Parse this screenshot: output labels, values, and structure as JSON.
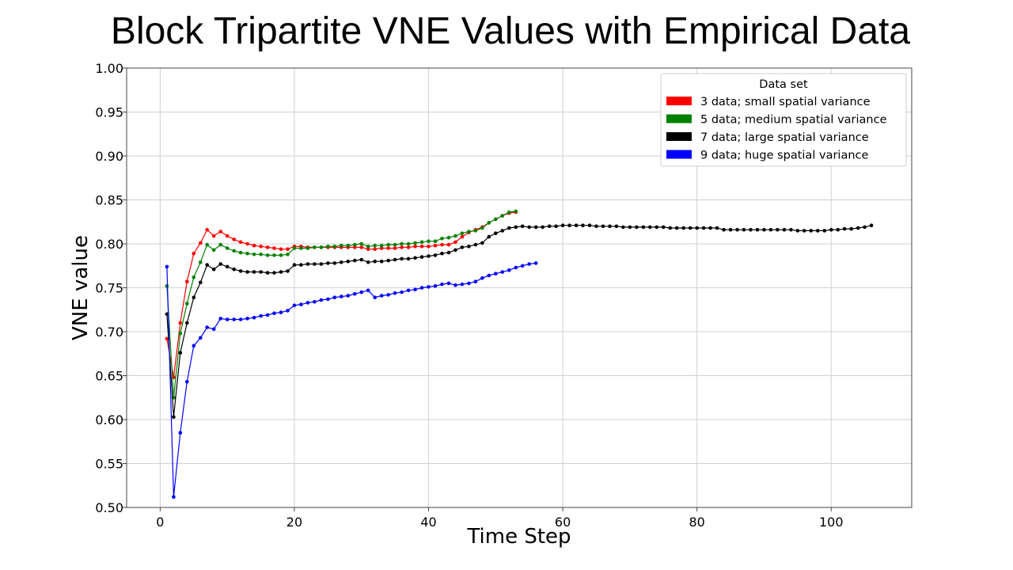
{
  "slide": {
    "title": "Block Tripartite VNE Values with Empirical Data"
  },
  "chart_data": {
    "type": "line",
    "xlabel": "Time Step",
    "ylabel": "VNE value",
    "xlim": [
      -5,
      112
    ],
    "ylim": [
      0.5,
      1.0
    ],
    "xticks": [
      0,
      20,
      40,
      60,
      80,
      100
    ],
    "yticks": [
      0.5,
      0.55,
      0.6,
      0.65,
      0.7,
      0.75,
      0.8,
      0.85,
      0.9,
      0.95,
      1.0
    ],
    "grid": true,
    "legend": {
      "title": "Data set",
      "position": "top-right"
    },
    "series": [
      {
        "name": "3 data; small spatial variance",
        "color": "#ff0000",
        "x_start": 1,
        "values": [
          0.692,
          0.648,
          0.71,
          0.757,
          0.789,
          0.801,
          0.816,
          0.809,
          0.814,
          0.809,
          0.805,
          0.802,
          0.8,
          0.798,
          0.797,
          0.796,
          0.795,
          0.794,
          0.794,
          0.797,
          0.797,
          0.796,
          0.796,
          0.796,
          0.796,
          0.796,
          0.796,
          0.796,
          0.796,
          0.796,
          0.794,
          0.794,
          0.795,
          0.795,
          0.795,
          0.796,
          0.796,
          0.797,
          0.797,
          0.797,
          0.798,
          0.799,
          0.799,
          0.802,
          0.808,
          0.813,
          0.816,
          0.819,
          0.824,
          0.828,
          0.832,
          0.835,
          0.836
        ]
      },
      {
        "name": "5 data; medium spatial variance",
        "color": "#008000",
        "x_start": 1,
        "values": [
          0.752,
          0.625,
          0.698,
          0.732,
          0.762,
          0.779,
          0.799,
          0.793,
          0.799,
          0.795,
          0.792,
          0.79,
          0.789,
          0.788,
          0.788,
          0.787,
          0.787,
          0.787,
          0.788,
          0.795,
          0.795,
          0.795,
          0.796,
          0.796,
          0.797,
          0.797,
          0.798,
          0.798,
          0.799,
          0.8,
          0.797,
          0.798,
          0.798,
          0.799,
          0.799,
          0.8,
          0.8,
          0.801,
          0.802,
          0.803,
          0.803,
          0.806,
          0.807,
          0.809,
          0.812,
          0.814,
          0.815,
          0.818,
          0.824,
          0.828,
          0.832,
          0.836,
          0.837
        ]
      },
      {
        "name": "7 data; large spatial variance",
        "color": "#000000",
        "x_start": 1,
        "values": [
          0.72,
          0.603,
          0.676,
          0.71,
          0.739,
          0.756,
          0.776,
          0.771,
          0.777,
          0.774,
          0.771,
          0.769,
          0.768,
          0.768,
          0.768,
          0.767,
          0.767,
          0.768,
          0.769,
          0.776,
          0.776,
          0.777,
          0.777,
          0.777,
          0.778,
          0.778,
          0.779,
          0.78,
          0.781,
          0.782,
          0.779,
          0.78,
          0.78,
          0.781,
          0.782,
          0.783,
          0.783,
          0.784,
          0.785,
          0.786,
          0.787,
          0.789,
          0.79,
          0.793,
          0.796,
          0.797,
          0.799,
          0.801,
          0.808,
          0.812,
          0.815,
          0.818,
          0.819,
          0.82,
          0.819,
          0.819,
          0.819,
          0.82,
          0.82,
          0.821,
          0.821,
          0.821,
          0.821,
          0.821,
          0.82,
          0.82,
          0.82,
          0.82,
          0.819,
          0.819,
          0.819,
          0.819,
          0.819,
          0.819,
          0.819,
          0.818,
          0.818,
          0.818,
          0.818,
          0.818,
          0.818,
          0.818,
          0.818,
          0.816,
          0.816,
          0.816,
          0.816,
          0.816,
          0.816,
          0.816,
          0.816,
          0.816,
          0.816,
          0.816,
          0.815,
          0.815,
          0.815,
          0.815,
          0.815,
          0.816,
          0.816,
          0.817,
          0.817,
          0.818,
          0.819,
          0.821
        ]
      },
      {
        "name": "9 data; huge spatial variance",
        "color": "#0000ff",
        "x_start": 1,
        "values": [
          0.774,
          0.512,
          0.585,
          0.643,
          0.684,
          0.693,
          0.705,
          0.703,
          0.715,
          0.714,
          0.714,
          0.714,
          0.715,
          0.716,
          0.718,
          0.719,
          0.721,
          0.722,
          0.724,
          0.73,
          0.731,
          0.733,
          0.734,
          0.736,
          0.737,
          0.739,
          0.74,
          0.741,
          0.743,
          0.745,
          0.747,
          0.739,
          0.741,
          0.742,
          0.744,
          0.745,
          0.747,
          0.748,
          0.75,
          0.751,
          0.752,
          0.754,
          0.755,
          0.753,
          0.754,
          0.755,
          0.757,
          0.761,
          0.764,
          0.766,
          0.768,
          0.77,
          0.773,
          0.775,
          0.777,
          0.778
        ]
      }
    ]
  }
}
